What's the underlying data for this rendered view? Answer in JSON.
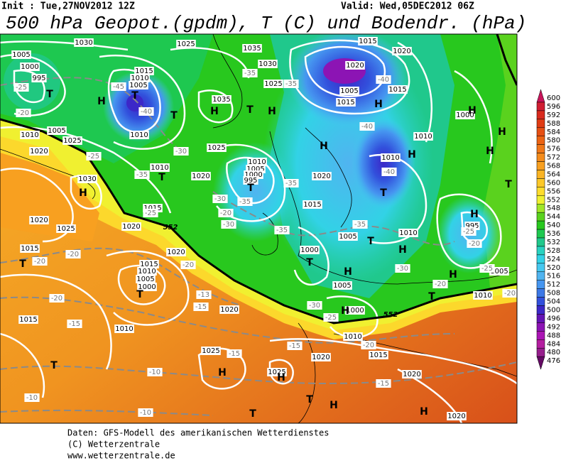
{
  "header": {
    "init": "Init : Tue,27NOV2012 12Z",
    "valid": "Valid: Wed,05DEC2012 06Z",
    "title": "500 hPa Geopot.(gpdm), T (C) und Bodendr. (hPa)"
  },
  "colorbar": {
    "ticks": [
      600,
      596,
      592,
      588,
      584,
      580,
      576,
      572,
      568,
      564,
      560,
      556,
      552,
      548,
      544,
      540,
      536,
      532,
      528,
      524,
      520,
      516,
      512,
      508,
      504,
      500,
      496,
      492,
      488,
      484,
      480,
      476
    ],
    "colors": [
      "#c8145a",
      "#d01e32",
      "#d82a1e",
      "#e03c14",
      "#e65014",
      "#ec6414",
      "#f07818",
      "#f48c1c",
      "#f8a020",
      "#fab424",
      "#fcc828",
      "#fedc2c",
      "#f0f030",
      "#a0e628",
      "#5ad21e",
      "#28c81e",
      "#1ec850",
      "#20c88c",
      "#28d2c0",
      "#32d2e6",
      "#46c8f0",
      "#50b4f0",
      "#4696f0",
      "#3c78e6",
      "#3250dc",
      "#3c28c8",
      "#6414b4",
      "#8c14b4",
      "#aa14b4",
      "#b41ea0",
      "#961e8c",
      "#640a64"
    ]
  },
  "map": {
    "isobar_labels": [
      "1030",
      "1025",
      "1035",
      "1015",
      "1020",
      "1005",
      "1000",
      "995",
      "1015",
      "1010",
      "1005",
      "1030",
      "1025",
      "1035",
      "1020",
      "1005",
      "1015",
      "1015",
      "1000",
      "1010",
      "1005",
      "1025",
      "1020",
      "1010",
      "1025",
      "1010",
      "1010",
      "1020",
      "1010",
      "1020",
      "1010",
      "1005",
      "1000",
      "995",
      "1030",
      "1015",
      "1020",
      "1025",
      "1015",
      "1020",
      "1005",
      "1010",
      "995",
      "1015",
      "1020",
      "1000",
      "1015",
      "1010",
      "1005",
      "1000",
      "1005",
      "1010",
      "1005",
      "1020",
      "1015",
      "1010",
      "1000",
      "1010",
      "1015",
      "1025",
      "1020",
      "1025",
      "1020",
      "1020"
    ],
    "isotherm_labels": [
      "-25",
      "-20",
      "-45",
      "-40",
      "-35",
      "-35",
      "-40",
      "-40",
      "-40",
      "-30",
      "-35",
      "-25",
      "-30",
      "-30",
      "-20",
      "-35",
      "-35",
      "-35",
      "-35",
      "-25",
      "-30",
      "-25",
      "-20",
      "-25",
      "-20",
      "-20",
      "-20",
      "-20",
      "-20",
      "-15",
      "-15",
      "-13",
      "-20",
      "-30",
      "-25",
      "-20",
      "-15",
      "-15",
      "-10",
      "-10",
      "-10",
      "-15"
    ],
    "centers": [
      "T",
      "H",
      "T",
      "T",
      "H",
      "T",
      "H",
      "H",
      "H",
      "H",
      "T",
      "T",
      "T",
      "H",
      "T",
      "H",
      "H",
      "H",
      "H",
      "T",
      "H",
      "T",
      "H",
      "H",
      "T",
      "T",
      "T",
      "H",
      "T",
      "H",
      "H",
      "T",
      "H",
      "T",
      "H"
    ],
    "contour_labels": [
      "552",
      "552"
    ]
  },
  "footer": [
    "Daten: GFS-Modell des amerikanischen Wetterdienstes",
    "(C) Wetterzentrale",
    "www.wetterzentrale.de"
  ]
}
